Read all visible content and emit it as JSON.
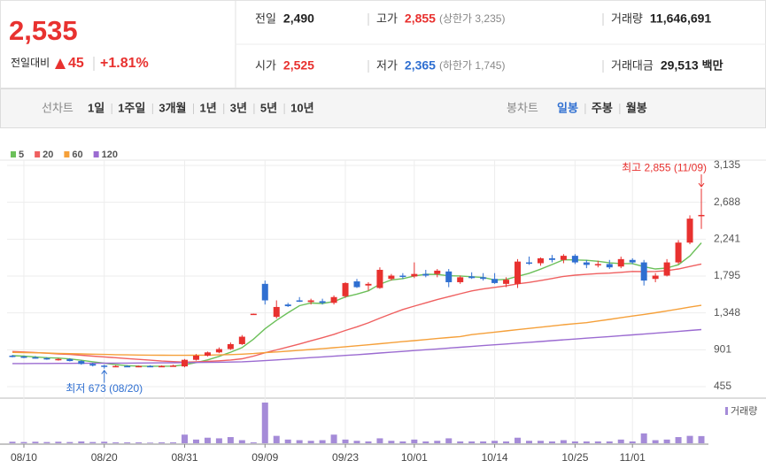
{
  "header": {
    "price": "2,535",
    "change_label": "전일대비",
    "change": "45",
    "change_rate": "+1.81%",
    "quotes": [
      {
        "label": "전일",
        "value": "2,490"
      },
      {
        "label": "고가",
        "value": "2,855",
        "sub": "(상한가 3,235)"
      },
      {
        "label": "거래량",
        "value": "11,646,691"
      },
      {
        "label": "시가",
        "value": "2,525"
      },
      {
        "label": "저가",
        "value": "2,365",
        "sub": "(하한가 1,745)"
      },
      {
        "label": "거래대금",
        "value": "29,513",
        "unit": "백만"
      }
    ]
  },
  "toolbar": {
    "line_label": "선차트",
    "periods": [
      "1일",
      "1주일",
      "3개월",
      "1년",
      "3년",
      "5년",
      "10년"
    ],
    "candle_label": "봉차트",
    "candle_options": [
      "일봉",
      "주봉",
      "월봉"
    ],
    "active_candle": 0
  },
  "chart_data": {
    "type": "candlestick",
    "categories": [
      null,
      "08/10",
      null,
      null,
      null,
      null,
      null,
      null,
      "08/20",
      null,
      null,
      null,
      null,
      null,
      null,
      "08/31",
      null,
      null,
      null,
      null,
      null,
      null,
      "09/09",
      null,
      null,
      null,
      null,
      null,
      null,
      "09/23",
      null,
      null,
      null,
      null,
      null,
      "10/01",
      null,
      null,
      null,
      null,
      null,
      null,
      "10/14",
      null,
      null,
      null,
      null,
      null,
      null,
      "10/25",
      null,
      null,
      null,
      null,
      "11/01",
      null,
      null,
      null,
      null,
      null,
      null
    ],
    "open": [
      830,
      820,
      810,
      800,
      785,
      790,
      765,
      730,
      710,
      700,
      705,
      700,
      705,
      700,
      705,
      700,
      780,
      830,
      870,
      910,
      970,
      1330,
      1700,
      1300,
      1450,
      1500,
      1480,
      1490,
      1470,
      1550,
      1730,
      1680,
      1650,
      1760,
      1800,
      1790,
      1820,
      1820,
      1850,
      1720,
      1790,
      1780,
      1760,
      1700,
      1700,
      1960,
      1950,
      2010,
      1990,
      2040,
      1960,
      1930,
      1940,
      1910,
      1990,
      1960,
      1760,
      1800,
      1960,
      2200,
      2525
    ],
    "high": [
      840,
      830,
      825,
      810,
      800,
      800,
      775,
      745,
      720,
      715,
      715,
      710,
      715,
      712,
      720,
      790,
      850,
      880,
      930,
      990,
      1080,
      1340,
      1740,
      1500,
      1470,
      1540,
      1520,
      1520,
      1560,
      1720,
      1760,
      1720,
      1900,
      1820,
      1830,
      1960,
      1870,
      1880,
      1880,
      1800,
      1840,
      1830,
      1830,
      1780,
      2000,
      2030,
      2020,
      2050,
      2060,
      2060,
      1990,
      1980,
      1990,
      2030,
      2010,
      1990,
      1830,
      2000,
      2230,
      2530,
      2855
    ],
    "low": [
      810,
      800,
      795,
      780,
      770,
      760,
      720,
      700,
      673,
      690,
      695,
      690,
      695,
      692,
      698,
      690,
      770,
      820,
      860,
      900,
      960,
      1330,
      1450,
      1280,
      1420,
      1480,
      1450,
      1450,
      1450,
      1530,
      1650,
      1620,
      1640,
      1740,
      1760,
      1770,
      1780,
      1780,
      1660,
      1700,
      1760,
      1740,
      1700,
      1660,
      1650,
      1930,
      1920,
      1960,
      1950,
      1940,
      1890,
      1900,
      1880,
      1890,
      1940,
      1680,
      1720,
      1790,
      1940,
      2180,
      2365
    ],
    "close": [
      820,
      810,
      800,
      785,
      790,
      765,
      730,
      710,
      700,
      705,
      700,
      705,
      700,
      705,
      710,
      780,
      830,
      870,
      910,
      970,
      1060,
      1338,
      1500,
      1420,
      1430,
      1490,
      1500,
      1470,
      1540,
      1710,
      1660,
      1700,
      1870,
      1800,
      1790,
      1820,
      1800,
      1860,
      1720,
      1780,
      1770,
      1760,
      1710,
      1750,
      1970,
      1950,
      2010,
      1990,
      2040,
      1960,
      1930,
      1940,
      1900,
      2000,
      1960,
      1740,
      1800,
      1960,
      2200,
      2490,
      2535
    ],
    "volume": [
      2500000,
      2000000,
      2500000,
      2000000,
      2500000,
      2000000,
      3000000,
      2000000,
      2500000,
      1500000,
      1500000,
      1500000,
      1000000,
      1500000,
      1500000,
      14000000,
      6000000,
      9000000,
      8000000,
      10000000,
      5000000,
      1500000,
      66000000,
      12000000,
      6000000,
      5000000,
      4000000,
      5000000,
      14000000,
      6000000,
      4000000,
      3000000,
      8000000,
      4000000,
      3000000,
      6000000,
      3000000,
      4000000,
      8000000,
      3000000,
      3000000,
      3000000,
      4000000,
      3000000,
      9000000,
      4000000,
      4000000,
      3000000,
      5000000,
      3000000,
      3000000,
      3000000,
      3000000,
      6000000,
      3000000,
      16000000,
      5000000,
      6000000,
      10000000,
      12000000,
      11646691
    ],
    "volume_name": "거래량",
    "volume_color": "#a58bd8",
    "up_color": "#e8312f",
    "down_color": "#2f6fd1",
    "series": [
      {
        "name": "5",
        "color": "#6cc05a",
        "values": [
          830,
          825,
          815,
          805,
          801,
          790,
          774,
          756,
          739,
          722,
          709,
          704,
          702,
          703,
          704,
          720,
          746,
          779,
          822,
          872,
          928,
          1030,
          1156,
          1258,
          1350,
          1436,
          1468,
          1462,
          1486,
          1542,
          1576,
          1616,
          1696,
          1748,
          1764,
          1796,
          1816,
          1814,
          1798,
          1796,
          1786,
          1778,
          1748,
          1754,
          1792,
          1828,
          1878,
          1934,
          1992,
          1990,
          1986,
          1974,
          1954,
          1946,
          1946,
          1908,
          1880,
          1892,
          1932,
          2038,
          2197
        ]
      },
      {
        "name": "20",
        "color": "#ef6060",
        "values": [
          880,
          875,
          868,
          860,
          852,
          845,
          835,
          825,
          815,
          805,
          795,
          785,
          775,
          765,
          758,
          752,
          755,
          760,
          768,
          778,
          793,
          825,
          865,
          900,
          935,
          972,
          1010,
          1048,
          1088,
          1135,
          1180,
          1228,
          1285,
          1338,
          1390,
          1430,
          1470,
          1510,
          1545,
          1580,
          1615,
          1638,
          1658,
          1676,
          1700,
          1718,
          1740,
          1765,
          1790,
          1805,
          1815,
          1825,
          1830,
          1840,
          1850,
          1848,
          1850,
          1860,
          1880,
          1910,
          1940
        ]
      },
      {
        "name": "60",
        "color": "#f5a03a",
        "values": [
          870,
          868,
          865,
          862,
          858,
          855,
          852,
          848,
          845,
          842,
          840,
          838,
          836,
          835,
          834,
          834,
          835,
          837,
          840,
          843,
          848,
          856,
          866,
          875,
          885,
          895,
          905,
          915,
          926,
          938,
          950,
          962,
          975,
          988,
          1000,
          1012,
          1025,
          1038,
          1050,
          1062,
          1085,
          1100,
          1115,
          1130,
          1145,
          1160,
          1175,
          1190,
          1205,
          1218,
          1230,
          1250,
          1270,
          1290,
          1310,
          1330,
          1350,
          1372,
          1395,
          1418,
          1440
        ]
      },
      {
        "name": "120",
        "color": "#9b6bd1",
        "values": [
          735,
          735,
          736,
          736,
          737,
          737,
          738,
          738,
          739,
          740,
          740,
          741,
          742,
          743,
          744,
          745,
          747,
          749,
          751,
          753,
          756,
          762,
          770,
          779,
          788,
          797,
          806,
          815,
          824,
          833,
          842,
          852,
          862,
          872,
          882,
          892,
          902,
          912,
          922,
          932,
          942,
          952,
          962,
          972,
          982,
          992,
          1002,
          1012,
          1022,
          1032,
          1042,
          1052,
          1062,
          1072,
          1082,
          1092,
          1102,
          1113,
          1124,
          1135,
          1146
        ]
      }
    ],
    "ylim": [
      337,
      3231
    ],
    "yticks": [
      {
        "value": 3135,
        "label": "3,135"
      },
      {
        "value": 2688,
        "label": "2,688"
      },
      {
        "value": 2241,
        "label": "2,241"
      },
      {
        "value": 1795,
        "label": "1,795"
      },
      {
        "value": 1348,
        "label": "1,348"
      },
      901,
      455
    ],
    "grid": true,
    "annotations": {
      "high_label": "최고 2,855 (11/09)",
      "low_label": "최저 673 (08/20)"
    }
  }
}
